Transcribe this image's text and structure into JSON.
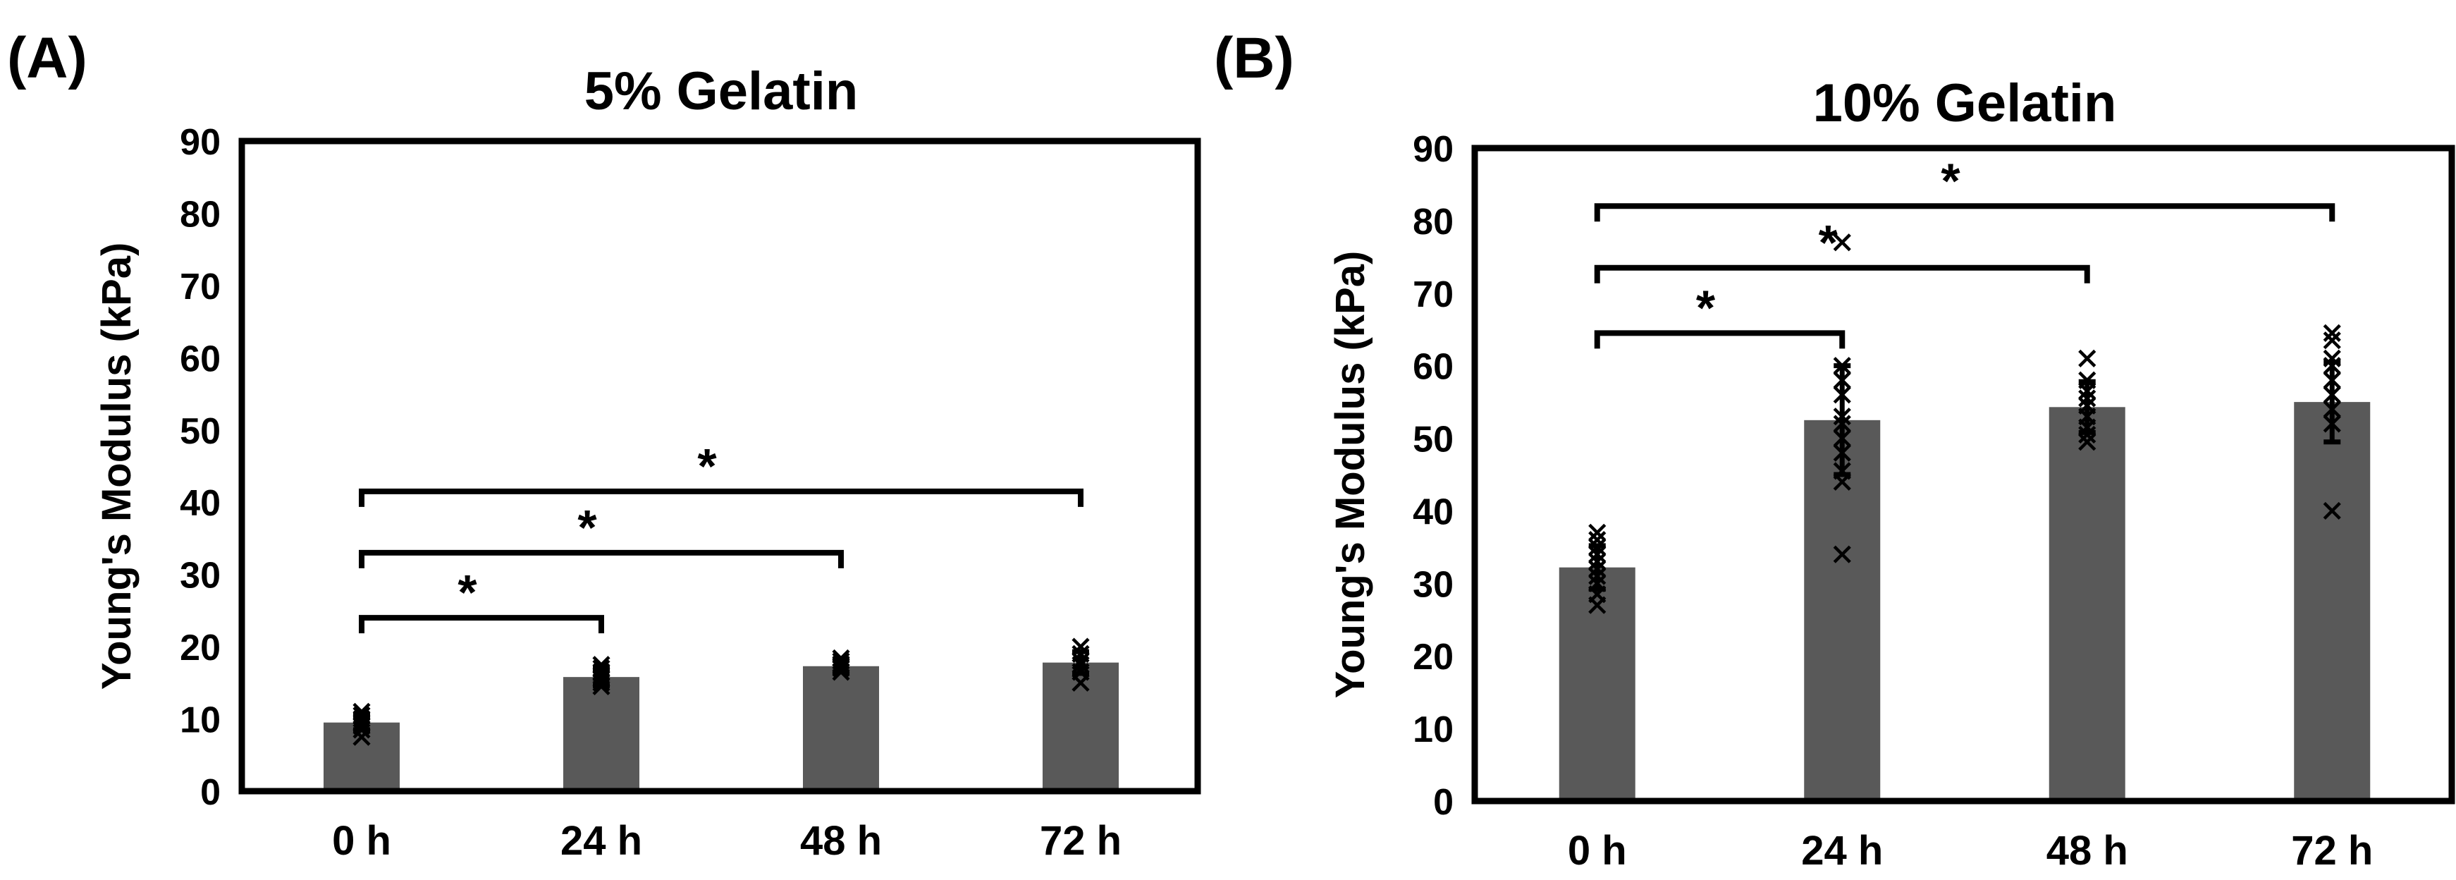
{
  "chart_data": [
    {
      "type": "bar",
      "panel_label": "(A)",
      "title": "5% Gelatin",
      "xlabel": "",
      "ylabel": "Young's Modulus (kPa)",
      "ylim": [
        0,
        90
      ],
      "yticks": [
        "0",
        "10",
        "20",
        "30",
        "40",
        "50",
        "60",
        "70",
        "80",
        "90"
      ],
      "categories": [
        "0 h",
        "24 h",
        "48 h",
        "72 h"
      ],
      "values": [
        9.5,
        15.8,
        17.3,
        17.8
      ],
      "errors": [
        1.0,
        1.2,
        0.8,
        1.5
      ],
      "points": [
        [
          7.5,
          8.5,
          9.0,
          9.5,
          10.0,
          10.5,
          11.0
        ],
        [
          14.5,
          15.0,
          15.5,
          16.0,
          16.5,
          17.0,
          17.5
        ],
        [
          16.5,
          17.0,
          17.3,
          17.6,
          18.0,
          18.4
        ],
        [
          15.0,
          16.5,
          17.5,
          18.0,
          19.0,
          20.0
        ]
      ],
      "significance": [
        {
          "from": 0,
          "to": 1,
          "y": 24,
          "label": "*"
        },
        {
          "from": 0,
          "to": 2,
          "y": 33,
          "label": "*"
        },
        {
          "from": 0,
          "to": 3,
          "y": 41.5,
          "label": "*"
        }
      ]
    },
    {
      "type": "bar",
      "panel_label": "(B)",
      "title": "10% Gelatin",
      "xlabel": "",
      "ylabel": "Young's Modulus (kPa)",
      "ylim": [
        0,
        90
      ],
      "yticks": [
        "0",
        "10",
        "20",
        "30",
        "40",
        "50",
        "60",
        "70",
        "80",
        "90"
      ],
      "categories": [
        "0 h",
        "24 h",
        "48 h",
        "72 h"
      ],
      "values": [
        32.2,
        52.5,
        54.3,
        55.0
      ],
      "errors": [
        3.0,
        7.5,
        3.5,
        5.5
      ],
      "points": [
        [
          27.0,
          28.5,
          30.0,
          31.0,
          32.0,
          33.0,
          34.0,
          35.0,
          36.0,
          37.0
        ],
        [
          34.0,
          44.0,
          45.5,
          48.0,
          50.0,
          52.0,
          53.0,
          56.0,
          58.0,
          60.0,
          77.0
        ],
        [
          49.5,
          50.5,
          51.5,
          53.0,
          54.5,
          55.5,
          56.5,
          58.0,
          61.0
        ],
        [
          40.0,
          52.0,
          54.0,
          56.0,
          58.0,
          60.0,
          61.0,
          63.5,
          64.5
        ]
      ],
      "significance": [
        {
          "from": 0,
          "to": 1,
          "y": 64.5,
          "label": "*"
        },
        {
          "from": 0,
          "to": 2,
          "y": 73.5,
          "label": "*"
        },
        {
          "from": 0,
          "to": 3,
          "y": 82,
          "label": "*"
        }
      ]
    }
  ]
}
